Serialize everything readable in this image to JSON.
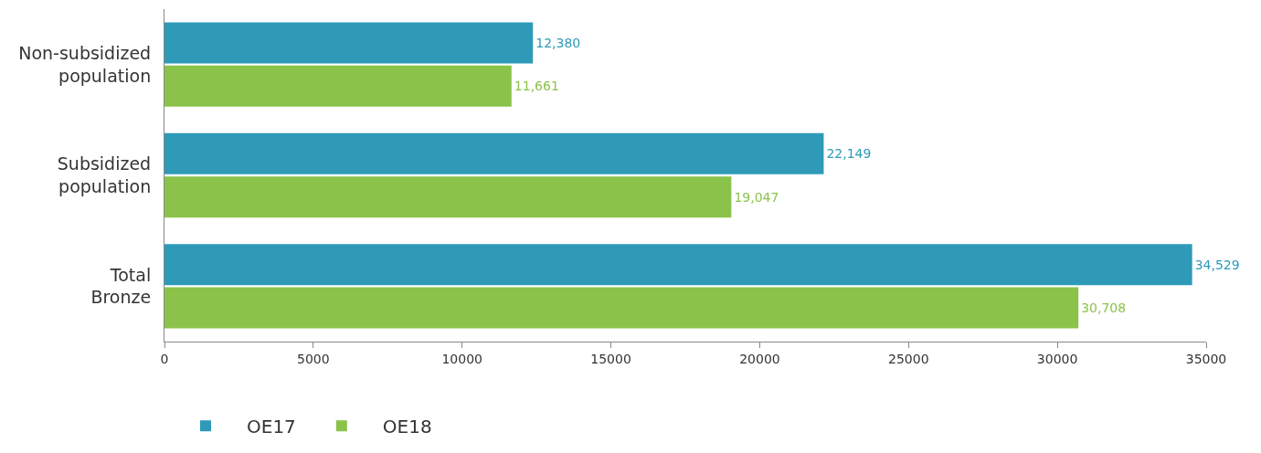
{
  "chart_data": {
    "type": "bar",
    "orientation": "horizontal",
    "categories": [
      "Non-subsidized\npopulation",
      "Subsidized\npopulation",
      "Total\nBronze"
    ],
    "series": [
      {
        "name": "OE17",
        "color": "#2e9ab8",
        "values": [
          12380,
          22149,
          34529
        ],
        "value_labels": [
          "12,380",
          "22,149",
          "34,529"
        ]
      },
      {
        "name": "OE18",
        "color": "#8bc34a",
        "values": [
          11661,
          19047,
          30708
        ],
        "value_labels": [
          "11,661",
          "19,047",
          "30,708"
        ]
      }
    ],
    "xlim": [
      0,
      35000
    ],
    "xticks": [
      0,
      5000,
      10000,
      15000,
      20000,
      25000,
      30000,
      35000
    ],
    "legend": "bottom"
  }
}
